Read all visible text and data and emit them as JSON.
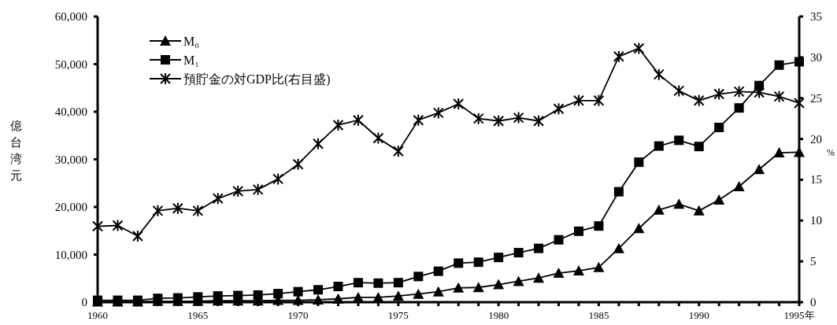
{
  "chart_data": {
    "type": "line",
    "ylabel": "億台湾元",
    "y2label": "%",
    "x": [
      1960,
      1961,
      1962,
      1963,
      1964,
      1965,
      1966,
      1967,
      1968,
      1969,
      1970,
      1971,
      1972,
      1973,
      1974,
      1975,
      1976,
      1977,
      1978,
      1979,
      1980,
      1981,
      1982,
      1983,
      1984,
      1985,
      1986,
      1987,
      1988,
      1989,
      1990,
      1991,
      1992,
      1993,
      1994,
      1995
    ],
    "xlim": [
      1960,
      1995
    ],
    "xticks": [
      1960,
      {
        "value": 1961,
        "label": null
      },
      {
        "value": 1962,
        "label": null
      },
      {
        "value": 1963,
        "label": null
      },
      {
        "value": 1964,
        "label": null
      },
      1965,
      {
        "value": 1966,
        "label": null
      },
      {
        "value": 1967,
        "label": null
      },
      {
        "value": 1968,
        "label": null
      },
      {
        "value": 1969,
        "label": null
      },
      1970,
      {
        "value": 1971,
        "label": null
      },
      {
        "value": 1972,
        "label": null
      },
      {
        "value": 1973,
        "label": null
      },
      {
        "value": 1974,
        "label": null
      },
      1975,
      {
        "value": 1976,
        "label": null
      },
      {
        "value": 1977,
        "label": null
      },
      {
        "value": 1978,
        "label": null
      },
      {
        "value": 1979,
        "label": null
      },
      1980,
      {
        "value": 1981,
        "label": null
      },
      {
        "value": 1982,
        "label": null
      },
      {
        "value": 1983,
        "label": null
      },
      {
        "value": 1984,
        "label": null
      },
      1985,
      {
        "value": 1986,
        "label": null
      },
      {
        "value": 1987,
        "label": null
      },
      {
        "value": 1988,
        "label": null
      },
      {
        "value": 1989,
        "label": null
      },
      1990,
      {
        "value": 1991,
        "label": null
      },
      {
        "value": 1992,
        "label": null
      },
      {
        "value": 1993,
        "label": null
      },
      {
        "value": 1994,
        "label": null
      },
      {
        "value": 1995,
        "label": "1995年"
      }
    ],
    "ylim": [
      0,
      60000
    ],
    "yticks": [
      {
        "value": 0,
        "label": "0"
      },
      {
        "value": 10000,
        "label": "10,000"
      },
      {
        "value": 20000,
        "label": "20,000"
      },
      {
        "value": 30000,
        "label": "30,000"
      },
      {
        "value": 40000,
        "label": "40,000"
      },
      {
        "value": 50000,
        "label": "50,000"
      },
      {
        "value": 60000,
        "label": "60,000"
      }
    ],
    "y2lim": [
      0,
      35
    ],
    "y2ticks": [
      0,
      5,
      10,
      15,
      20,
      25,
      30,
      35
    ],
    "grid": false,
    "legend": "top left",
    "line_style": "solid",
    "series": [
      {
        "name": "M₀",
        "color": "#000000",
        "marker": "triangle",
        "values": [
          100,
          100,
          100,
          200,
          200,
          200,
          300,
          300,
          300,
          400,
          400,
          500,
          700,
          1000,
          1000,
          1300,
          1700,
          2200,
          3000,
          3100,
          3700,
          4400,
          5100,
          6100,
          6600,
          7300,
          11300,
          15500,
          19400,
          20600,
          19200,
          21500,
          24300,
          27900,
          31400,
          31500
        ]
      },
      {
        "name": "M₁",
        "color": "#000000",
        "marker": "square",
        "values": [
          400,
          400,
          400,
          800,
          900,
          1100,
          1300,
          1400,
          1500,
          1800,
          2200,
          2600,
          3300,
          4100,
          4000,
          4100,
          5400,
          6500,
          8200,
          8400,
          9400,
          10400,
          11300,
          13100,
          14900,
          16000,
          23200,
          29400,
          32800,
          34000,
          32700,
          36700,
          40800,
          45500,
          49800,
          50500
        ]
      },
      {
        "name": "預貯金の対GDP比(右目盛)",
        "color": "#000000",
        "marker": "cross",
        "axis": "y2",
        "values": [
          9.3,
          9.4,
          8.1,
          11.2,
          11.5,
          11.2,
          12.7,
          13.6,
          13.8,
          15.1,
          16.9,
          19.4,
          21.7,
          22.3,
          20.1,
          18.5,
          22.3,
          23.2,
          24.3,
          22.5,
          22.2,
          22.6,
          22.2,
          23.7,
          24.7,
          24.7,
          30.1,
          31.1,
          27.9,
          25.9,
          24.7,
          25.5,
          25.8,
          25.7,
          25.2,
          24.4
        ]
      }
    ]
  }
}
